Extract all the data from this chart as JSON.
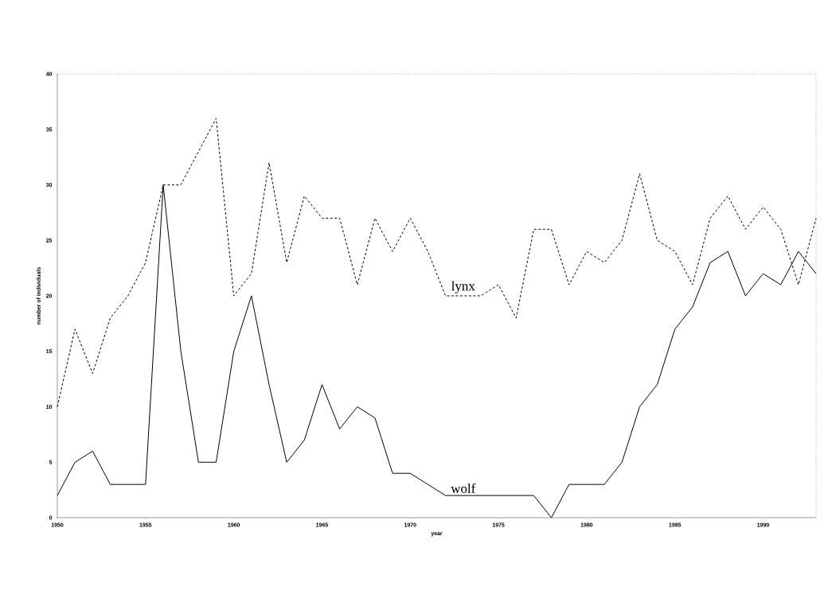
{
  "chart_data": {
    "type": "line",
    "xlabel": "year",
    "ylabel": "number of individuals",
    "x": [
      1950,
      1951,
      1952,
      1953,
      1954,
      1955,
      1956,
      1957,
      1958,
      1959,
      1960,
      1961,
      1962,
      1963,
      1964,
      1965,
      1966,
      1967,
      1968,
      1969,
      1970,
      1971,
      1972,
      1973,
      1974,
      1975,
      1976,
      1977,
      1978,
      1979,
      1980,
      1981,
      1982,
      1983,
      1984,
      1985,
      1986,
      1987,
      1988,
      1989,
      1990,
      1991,
      1992,
      1993
    ],
    "series": [
      {
        "name": "lynx",
        "color": "#000000",
        "line_style": "dashed",
        "values": [
          10,
          17,
          13,
          18,
          20,
          23,
          30,
          30,
          33,
          36,
          20,
          22,
          32,
          23,
          29,
          27,
          27,
          21,
          27,
          24,
          27,
          24,
          20,
          20,
          20,
          21,
          18,
          26,
          26,
          21,
          24,
          23,
          25,
          31,
          25,
          24,
          21,
          27,
          29,
          26,
          28,
          26,
          21,
          27
        ]
      },
      {
        "name": "wolf",
        "color": "#000000",
        "line_style": "solid",
        "values": [
          2,
          5,
          6,
          3,
          3,
          3,
          30,
          15,
          5,
          5,
          15,
          20,
          12,
          5,
          7,
          12,
          8,
          10,
          9,
          4,
          4,
          3,
          2,
          2,
          2,
          2,
          2,
          2,
          0,
          3,
          3,
          3,
          5,
          10,
          12,
          17,
          19,
          23,
          24,
          20,
          22,
          21,
          24,
          22
        ]
      }
    ],
    "xlim": [
      1950,
      1993
    ],
    "ylim": [
      0,
      40
    ],
    "xticks": [
      1950,
      1955,
      1960,
      1965,
      1970,
      1975,
      1980,
      1985,
      1990
    ],
    "yticks": [
      0,
      5,
      10,
      15,
      20,
      25,
      30,
      35,
      40
    ],
    "grid": false,
    "marker": "none"
  }
}
